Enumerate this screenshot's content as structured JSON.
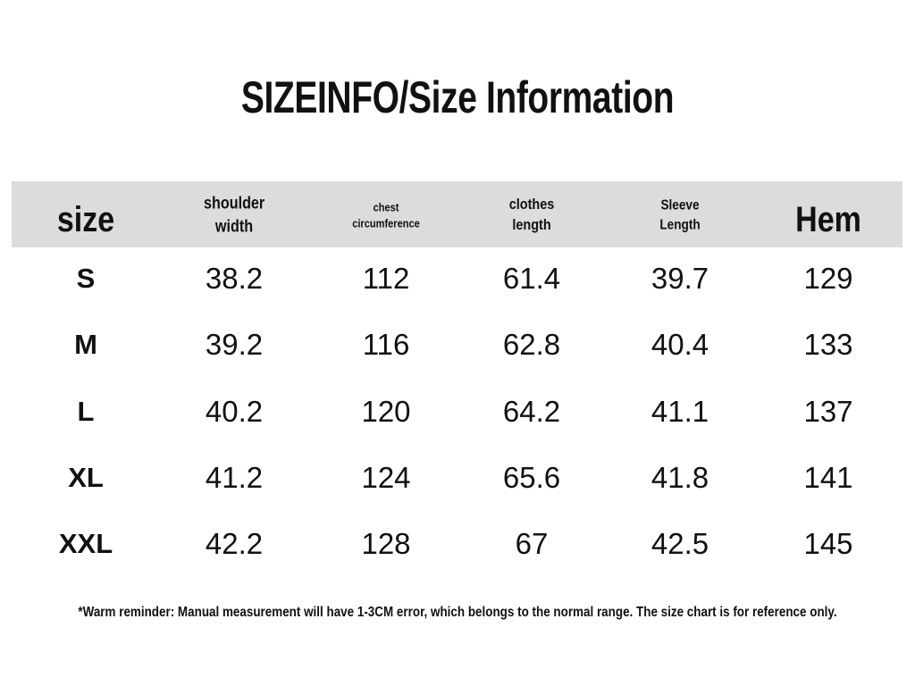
{
  "title": "SIZEINFO/Size Information",
  "table": {
    "headers": [
      "size",
      "shoulder width",
      "chest circumference",
      "clothes length",
      "Sleeve Length",
      "Hem"
    ],
    "rows": [
      [
        "S",
        38.2,
        112,
        61.4,
        39.7,
        129
      ],
      [
        "M",
        39.2,
        116,
        62.8,
        40.4,
        133
      ],
      [
        "L",
        40.2,
        120,
        64.2,
        41.1,
        137
      ],
      [
        "XL",
        41.2,
        124,
        65.6,
        41.8,
        141
      ],
      [
        "XXL",
        42.2,
        128,
        67,
        42.5,
        145
      ]
    ]
  },
  "footnote": "*Warm reminder: Manual measurement will have 1-3CM error, which belongs to the normal range. The size chart is for reference only."
}
